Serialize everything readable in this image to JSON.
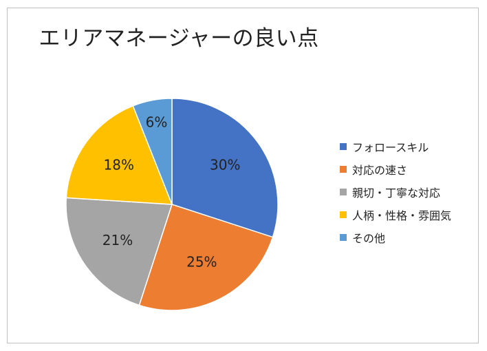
{
  "chart_data": {
    "type": "pie",
    "title": "エリアマネージャーの良い点",
    "categories": [
      "フォロースキル",
      "対応の速さ",
      "親切・丁寧な対応",
      "人柄・性格・雰囲気",
      "その他"
    ],
    "values": [
      30,
      25,
      21,
      18,
      6
    ],
    "labels": [
      "30%",
      "25%",
      "21%",
      "18%",
      "6%"
    ],
    "colors": [
      "#4472c4",
      "#ed7d31",
      "#a5a5a5",
      "#ffc000",
      "#5b9bd5"
    ],
    "legend_position": "right"
  }
}
